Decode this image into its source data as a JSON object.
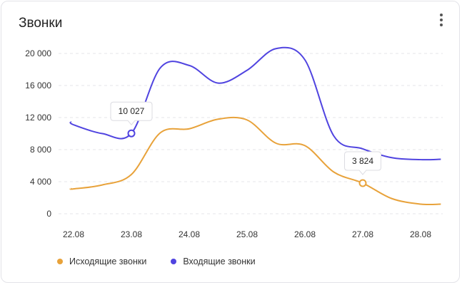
{
  "card": {
    "title": "Звонки"
  },
  "chart_data": {
    "type": "line",
    "categories": [
      "22.08",
      "23.08",
      "24.08",
      "25.08",
      "26.08",
      "27.08",
      "28.08"
    ],
    "yticks": [
      "0",
      "4 000",
      "8 000",
      "12 000",
      "16 000",
      "20 000"
    ],
    "ylim": [
      0,
      20000
    ],
    "grid": true,
    "legend_position": "bottom-left",
    "series": [
      {
        "name": "Исходящие звонки",
        "color": "#e8a23a",
        "x": [
          -0.05,
          0,
          0.5,
          1,
          1.5,
          2,
          2.5,
          3,
          3.5,
          4,
          4.5,
          5,
          5.5,
          6,
          6.35
        ],
        "values": [
          3150,
          3100,
          3600,
          4900,
          10100,
          10600,
          11800,
          11700,
          8800,
          8500,
          5200,
          3824,
          1900,
          1200,
          1200
        ]
      },
      {
        "name": "Входящие звонки",
        "color": "#5044e0",
        "x": [
          -0.05,
          0,
          0.5,
          1,
          1.5,
          2,
          2.5,
          3,
          3.5,
          4,
          4.5,
          5,
          5.5,
          6,
          6.35
        ],
        "values": [
          11500,
          11100,
          10000,
          10027,
          18200,
          18500,
          16300,
          17900,
          20600,
          19200,
          9700,
          8100,
          7000,
          6750,
          6800
        ]
      }
    ],
    "annotations": [
      {
        "series": 1,
        "x": 1,
        "label": "10 027"
      },
      {
        "series": 0,
        "x": 5,
        "label": "3 824"
      }
    ]
  }
}
